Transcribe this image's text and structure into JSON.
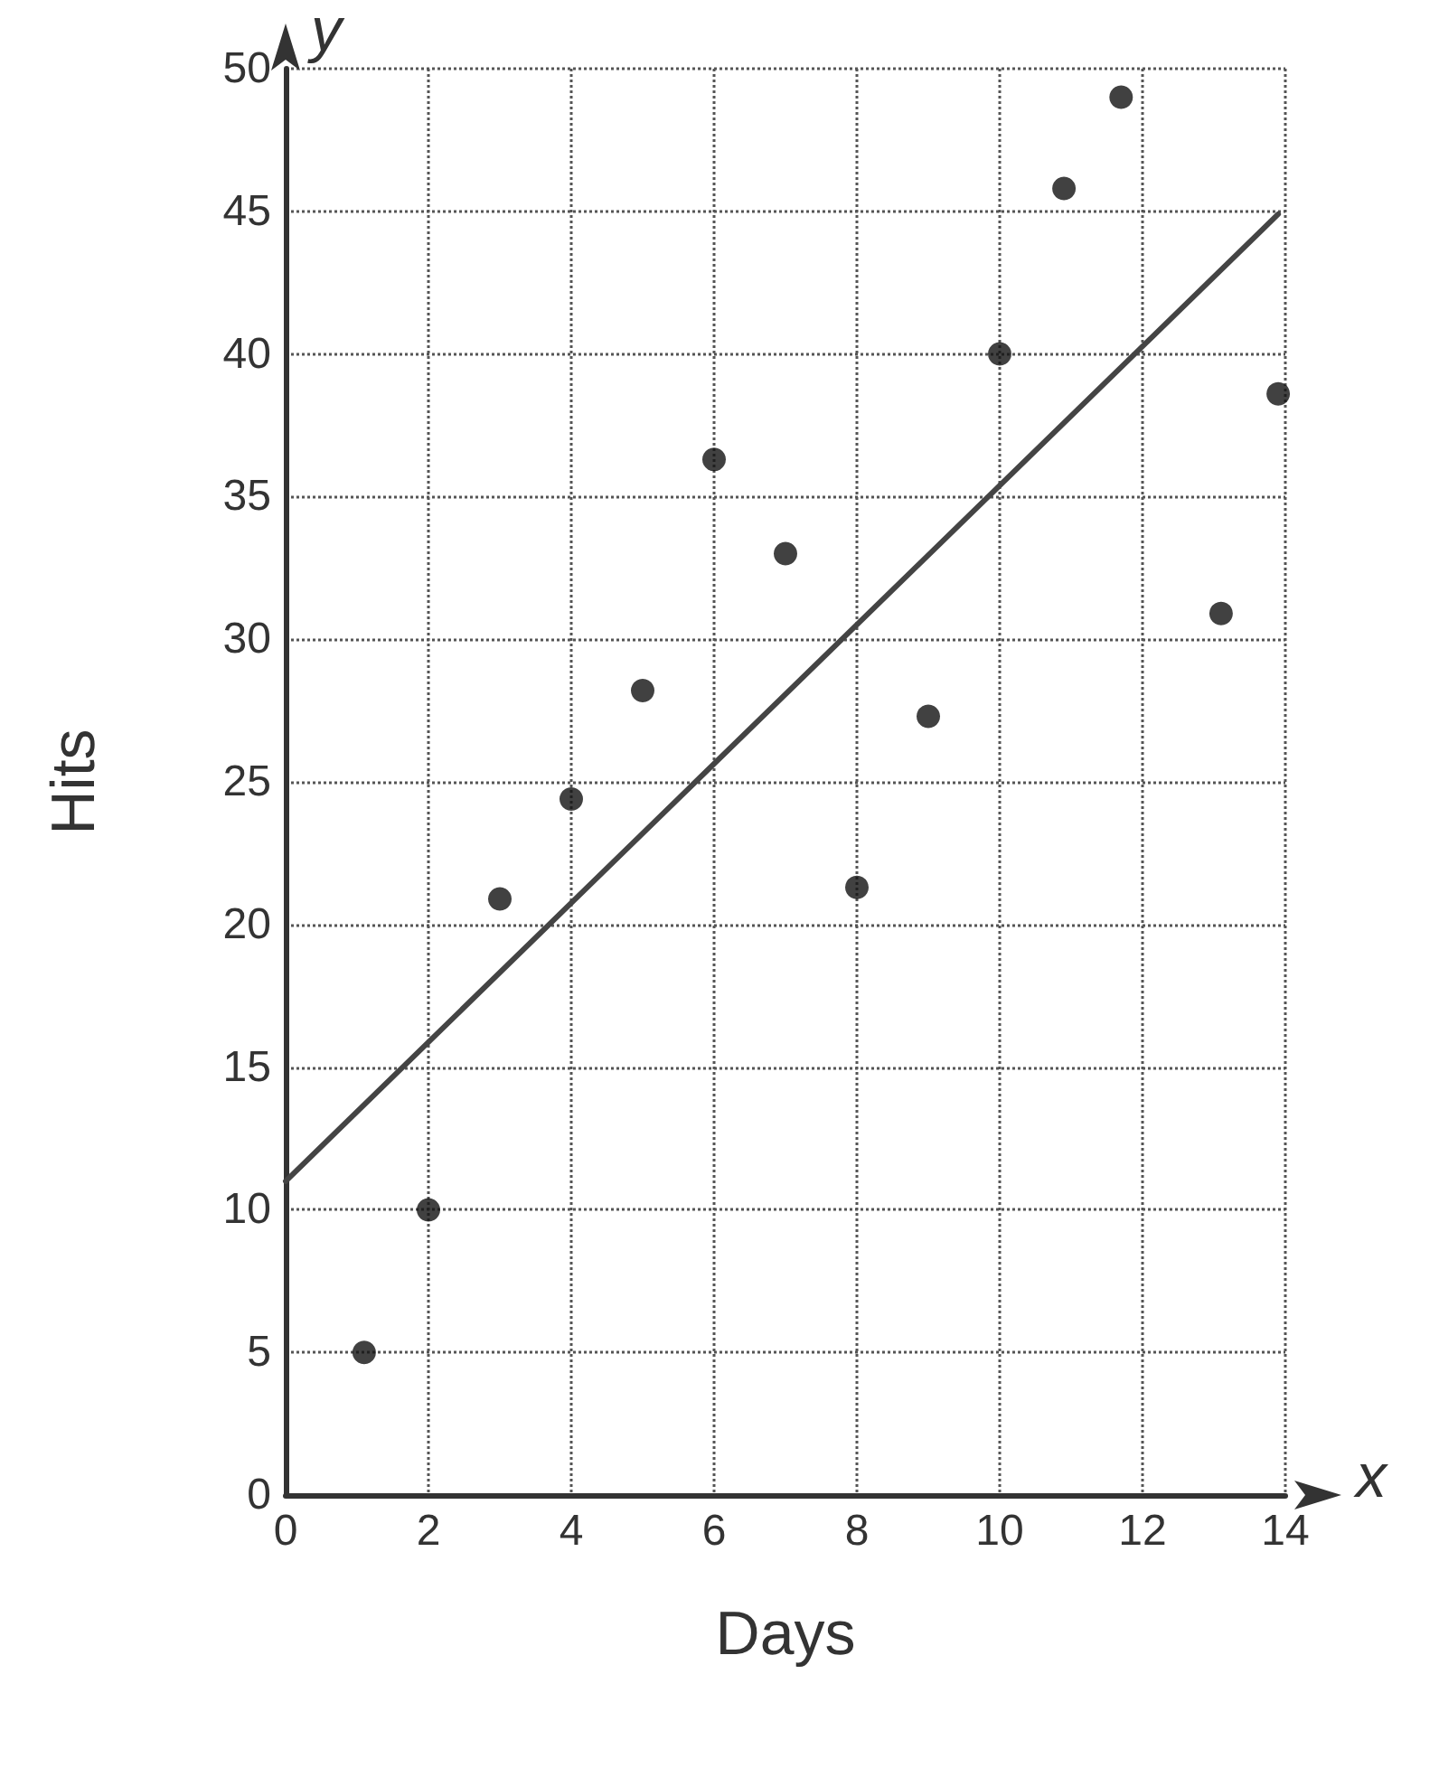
{
  "chart_data": {
    "type": "scatter",
    "xlabel": "Days",
    "ylabel": "Hits",
    "annotations": [
      "x",
      "y"
    ],
    "xlim": [
      0,
      14
    ],
    "ylim": [
      0,
      50
    ],
    "xticks": [
      0,
      2,
      4,
      6,
      8,
      10,
      12,
      14
    ],
    "yticks": [
      0,
      5,
      10,
      15,
      20,
      25,
      30,
      35,
      40,
      45,
      50
    ],
    "grid": true,
    "marker": "circle",
    "series": [
      {
        "color": "#111111",
        "x": [
          1.1,
          2,
          3,
          4,
          5,
          6,
          7,
          8,
          9,
          10,
          10.9,
          11.7,
          13.1,
          13.9
        ],
        "values": [
          5,
          10,
          20.9,
          24.4,
          28.2,
          36.3,
          33,
          21.3,
          27.3,
          40,
          45.8,
          49,
          30.9,
          38.6
        ]
      },
      {
        "type": "line",
        "color": "#444444",
        "marker": "none",
        "x": [
          0,
          13.9
        ],
        "values": [
          11,
          44.9
        ]
      }
    ]
  }
}
